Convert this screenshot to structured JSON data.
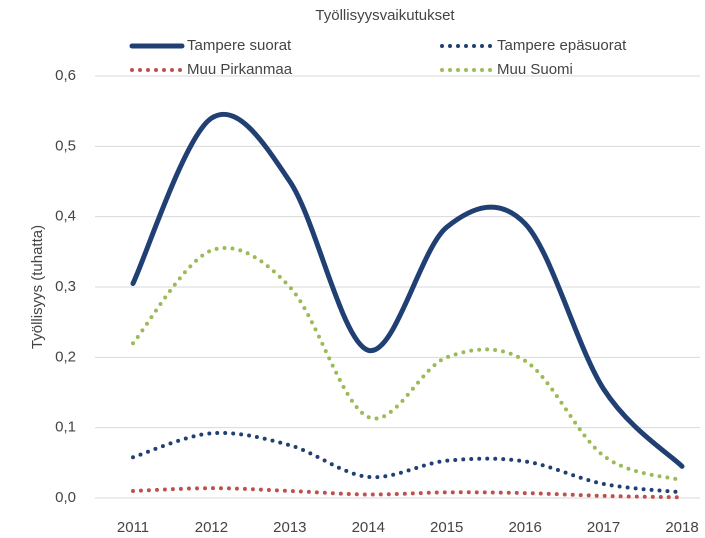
{
  "chart_data": {
    "type": "line",
    "title": "Työllisyysvaikutukset",
    "ylabel": "Työllisyys (tuhatta)",
    "categories": [
      "2011",
      "2012",
      "2013",
      "2014",
      "2015",
      "2016",
      "2017",
      "2018"
    ],
    "series": [
      {
        "name": "Tampere suorat",
        "color": "#203f73",
        "style": "solid",
        "values": [
          0.305,
          0.54,
          0.45,
          0.21,
          0.385,
          0.39,
          0.155,
          0.045
        ]
      },
      {
        "name": "Tampere epäsuorat",
        "color": "#203f73",
        "style": "dotted",
        "values": [
          0.058,
          0.092,
          0.075,
          0.03,
          0.053,
          0.052,
          0.02,
          0.008
        ]
      },
      {
        "name": "Muu Pirkanmaa",
        "color": "#c0504d",
        "style": "dotted",
        "values": [
          0.01,
          0.014,
          0.01,
          0.005,
          0.008,
          0.007,
          0.003,
          0.001
        ]
      },
      {
        "name": "Muu Suomi",
        "color": "#9bbb59",
        "style": "dotted",
        "values": [
          0.22,
          0.352,
          0.3,
          0.115,
          0.2,
          0.195,
          0.06,
          0.025
        ]
      }
    ],
    "ylim": [
      0,
      0.6
    ],
    "yticks": [
      {
        "value": 0,
        "label": "0,0"
      },
      {
        "value": 0.1,
        "label": "0,1"
      },
      {
        "value": 0.2,
        "label": "0,2"
      },
      {
        "value": 0.3,
        "label": "0,3"
      },
      {
        "value": 0.4,
        "label": "0,4"
      },
      {
        "value": 0.5,
        "label": "0,5"
      },
      {
        "value": 0.6,
        "label": "0,6"
      }
    ],
    "grid": true,
    "smooth": true
  }
}
